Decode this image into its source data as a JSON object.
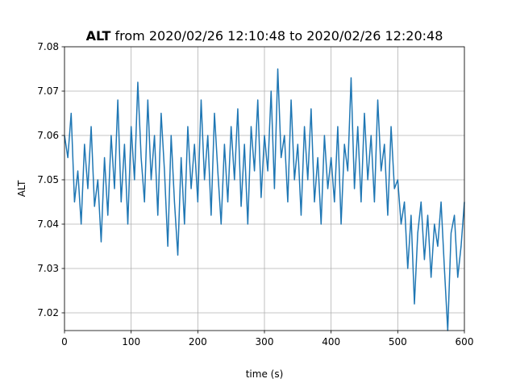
{
  "chart_data": {
    "type": "line",
    "title_bold": "ALT",
    "title": "from 2020/02/26 12:10:48 to 2020/02/26 12:20:48",
    "xlabel": "time (s)",
    "ylabel": "ALT",
    "color": "#1f77b4",
    "grid": true,
    "xlim": [
      0,
      600
    ],
    "xticks": [
      0,
      100,
      200,
      300,
      400,
      500,
      600
    ],
    "ylim": [
      7.016,
      7.08
    ],
    "yticks": [
      7.02,
      7.03,
      7.04,
      7.05,
      7.06,
      7.07,
      7.08
    ],
    "x": [
      0,
      5,
      10,
      15,
      20,
      25,
      30,
      35,
      40,
      45,
      50,
      55,
      60,
      65,
      70,
      75,
      80,
      85,
      90,
      95,
      100,
      105,
      110,
      115,
      120,
      125,
      130,
      135,
      140,
      145,
      150,
      155,
      160,
      165,
      170,
      175,
      180,
      185,
      190,
      195,
      200,
      205,
      210,
      215,
      220,
      225,
      230,
      235,
      240,
      245,
      250,
      255,
      260,
      265,
      270,
      275,
      280,
      285,
      290,
      295,
      300,
      305,
      310,
      315,
      320,
      325,
      330,
      335,
      340,
      345,
      350,
      355,
      360,
      365,
      370,
      375,
      380,
      385,
      390,
      395,
      400,
      405,
      410,
      415,
      420,
      425,
      430,
      435,
      440,
      445,
      450,
      455,
      460,
      465,
      470,
      475,
      480,
      485,
      490,
      495,
      500,
      505,
      510,
      515,
      520,
      525,
      530,
      535,
      540,
      545,
      550,
      555,
      560,
      565,
      570,
      575,
      580,
      585,
      590,
      595,
      600
    ],
    "values": [
      7.06,
      7.055,
      7.065,
      7.045,
      7.052,
      7.04,
      7.058,
      7.048,
      7.062,
      7.044,
      7.05,
      7.036,
      7.055,
      7.042,
      7.06,
      7.048,
      7.068,
      7.045,
      7.058,
      7.04,
      7.062,
      7.05,
      7.072,
      7.055,
      7.045,
      7.068,
      7.05,
      7.06,
      7.042,
      7.065,
      7.052,
      7.035,
      7.06,
      7.045,
      7.033,
      7.055,
      7.04,
      7.062,
      7.048,
      7.058,
      7.045,
      7.068,
      7.05,
      7.06,
      7.042,
      7.065,
      7.052,
      7.04,
      7.058,
      7.045,
      7.062,
      7.05,
      7.066,
      7.044,
      7.058,
      7.04,
      7.062,
      7.052,
      7.068,
      7.046,
      7.06,
      7.052,
      7.07,
      7.048,
      7.075,
      7.055,
      7.06,
      7.045,
      7.068,
      7.05,
      7.058,
      7.042,
      7.062,
      7.05,
      7.066,
      7.045,
      7.055,
      7.04,
      7.06,
      7.048,
      7.055,
      7.045,
      7.062,
      7.04,
      7.058,
      7.052,
      7.073,
      7.048,
      7.062,
      7.045,
      7.065,
      7.05,
      7.06,
      7.045,
      7.068,
      7.052,
      7.058,
      7.042,
      7.062,
      7.048,
      7.05,
      7.04,
      7.045,
      7.03,
      7.042,
      7.022,
      7.038,
      7.045,
      7.032,
      7.042,
      7.028,
      7.04,
      7.035,
      7.045,
      7.03,
      7.016,
      7.038,
      7.042,
      7.028,
      7.035,
      7.045
    ]
  }
}
